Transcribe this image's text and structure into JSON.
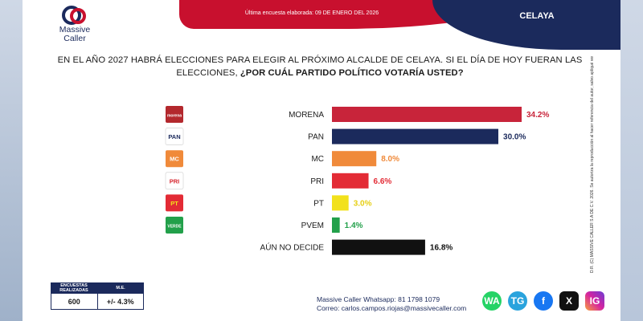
{
  "header": {
    "last_survey": "Última encuesta elaborada: 09 DE ENERO DEL 2026",
    "city": "CELAYA"
  },
  "brand": {
    "line1": "Massive",
    "line2": "Caller"
  },
  "question": {
    "part1": "EN EL AÑO 2027 HABRÁ ELECCIONES PARA ELEGIR AL PRÓXIMO ALCALDE DE CELAYA. SI EL DÍA DE HOY FUERAN LAS ELECCIONES, ",
    "part2": "¿POR CUÁL PARTIDO POLÍTICO VOTARÍA USTED?"
  },
  "chart_data": {
    "type": "bar",
    "orientation": "horizontal",
    "title": "¿POR CUÁL PARTIDO POLÍTICO VOTARÍA USTED?",
    "categories": [
      "MORENA",
      "PAN",
      "MC",
      "PRI",
      "PT",
      "PVEM",
      "AÚN NO DECIDE"
    ],
    "values": [
      34.2,
      30.0,
      8.0,
      6.6,
      3.0,
      1.4,
      16.8
    ],
    "value_labels": [
      "34.2%",
      "30.0%",
      "8.0%",
      "6.6%",
      "3.0%",
      "1.4%",
      "16.8%"
    ],
    "colors": [
      "#c8243a",
      "#1b2a5c",
      "#f08a3a",
      "#e32b35",
      "#f2e11c",
      "#22a04a",
      "#111111"
    ],
    "label_colors": [
      "#c8243a",
      "#1b2a5c",
      "#f08a3a",
      "#e32b35",
      "#e6cf14",
      "#22a04a",
      "#111111"
    ],
    "logos": [
      "morena",
      "PAN",
      "MC",
      "PRI",
      "PT",
      "VERDE"
    ],
    "xlim": [
      0,
      40
    ]
  },
  "sample": {
    "h1": "ENCUESTAS REALIZADAS",
    "h2": "M.E.",
    "v1": "600",
    "v2": "+/- 4.3%"
  },
  "contact": {
    "whatsapp": "Massive Caller Whatsapp: 81 1798 1079",
    "email": "Correo: carlos.campos.riojas@massivecaller.com"
  },
  "social": [
    "WA",
    "TG",
    "f",
    "X",
    "IG"
  ],
  "legal": "D.R. (C) MASSIVE CALLER S.A DE C.V. 2026. Se autoriza la reproducción al hacer referencia del autor, salvo apliqué veda electoral al contenido."
}
